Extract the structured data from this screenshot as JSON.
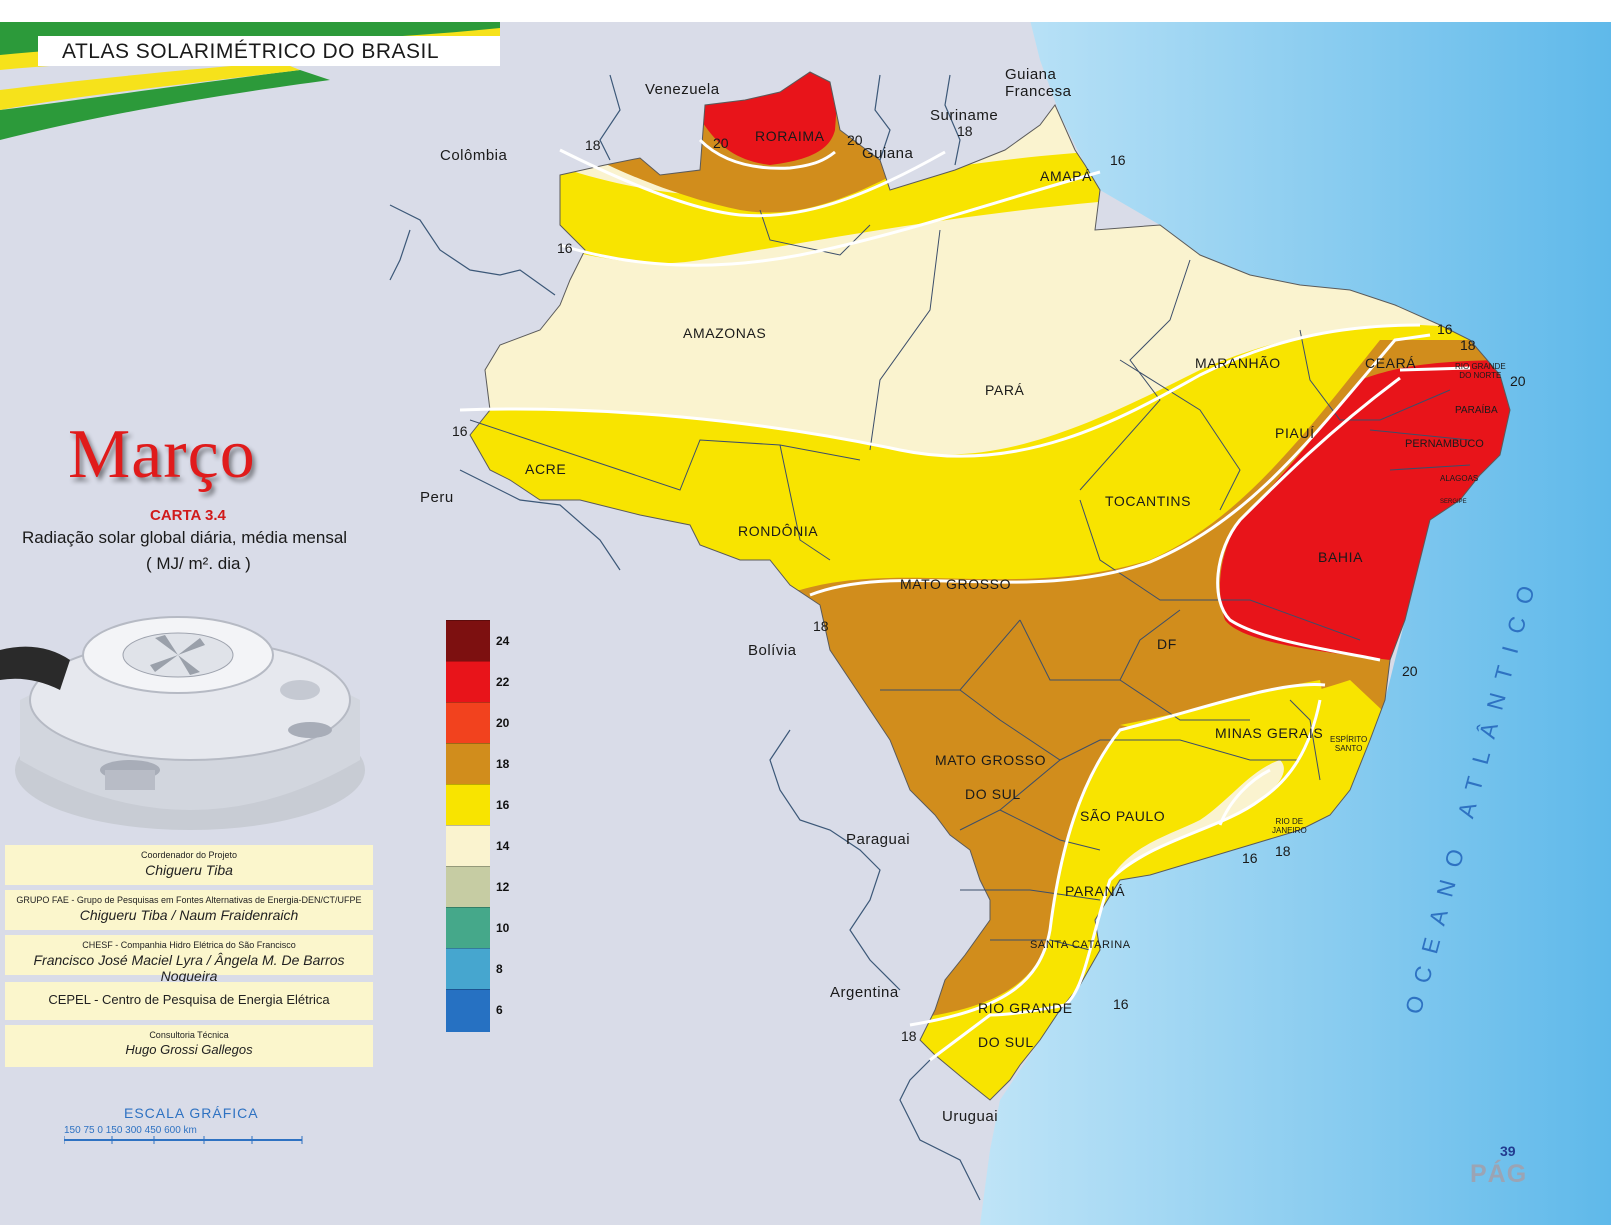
{
  "header": {
    "atlas_title": "ATLAS SOLARIMÉTRICO DO BRASIL"
  },
  "title": {
    "month": "Março",
    "carta": "CARTA 3.4",
    "subtitle": "Radiação solar global diária, média mensal",
    "units": "( MJ/ m². dia )"
  },
  "legend": {
    "items": [
      {
        "value": "24",
        "color": "#7d1010"
      },
      {
        "value": "22",
        "color": "#e8141a"
      },
      {
        "value": "20",
        "color": "#f2421e"
      },
      {
        "value": "18",
        "color": "#d18d1c"
      },
      {
        "value": "16",
        "color": "#f8e400"
      },
      {
        "value": "14",
        "color": "#faf3cf"
      },
      {
        "value": "12",
        "color": "#c6cca3"
      },
      {
        "value": "10",
        "color": "#45a88a"
      },
      {
        "value": "8",
        "color": "#46a6cf"
      },
      {
        "value": "6",
        "color": "#2671c2"
      }
    ]
  },
  "credits": [
    {
      "small": "Coordenador do Projeto",
      "name": "Chigueru  Tiba"
    },
    {
      "small": "GRUPO  FAE - Grupo de Pesquisas em Fontes Alternativas de Energia-DEN/CT/UFPE",
      "name": "Chigueru Tiba /   Naum  Fraidenraich"
    },
    {
      "small": "CHESF  -  Companhia Hidro Elétrica do São Francisco",
      "name": "Francisco José Maciel Lyra / Ângela M. De Barros Nogueira"
    },
    {
      "small": "",
      "name": "CEPEL - Centro de Pesquisa de Energia Elétrica"
    },
    {
      "small": "Consultoria Técnica",
      "name": "Hugo  Grossi Gallegos"
    }
  ],
  "scale": {
    "title": "ESCALA  GRÁFICA",
    "ticks": "150  75   0      150       300      450       600  km"
  },
  "countries": {
    "venezuela": "Venezuela",
    "guiana_francesa": "Guiana\nFrancesa",
    "suriname": "Suriname",
    "guiana": "Guiana",
    "colombia": "Colômbia",
    "peru": "Peru",
    "bolivia": "Bolívia",
    "paraguai": "Paraguai",
    "argentina": "Argentina",
    "uruguai": "Uruguai"
  },
  "states": {
    "roraima": "RORAIMA",
    "amapa": "AMAPÁ",
    "amazonas": "AMAZONAS",
    "para": "PARÁ",
    "maranhao": "MARANHÃO",
    "ceara": "CEARÁ",
    "rio_grande_do_norte": "RIO GRANDE\nDO NORTE",
    "paraiba": "PARAÍBA",
    "pernambuco": "PERNAMBUCO",
    "alagoas": "ALAGOAS",
    "sergipe": "SERGIPE",
    "piaui": "PIAUÍ",
    "acre": "ACRE",
    "rondonia": "RONDÔNIA",
    "tocantins": "TOCANTINS",
    "bahia": "BAHIA",
    "mato_grosso": "MATO  GROSSO",
    "df": "DF",
    "minas_gerais": "MINAS  GERAIS",
    "espirito_santo": "ESPÍRITO\nSANTO",
    "mato_grosso_do_sul_1": "MATO  GROSSO",
    "mato_grosso_do_sul_2": "DO SUL",
    "sao_paulo": "SÃO  PAULO",
    "rio_de_janeiro": "RIO DE\nJANEIRO",
    "parana": "PARANÁ",
    "santa_catarina": "SANTA CATARINA",
    "rio_grande_do_sul_1": "RIO GRANDE",
    "rio_grande_do_sul_2": "DO  SUL"
  },
  "isolines": {
    "n18_left": "18",
    "n20_roraima_l": "20",
    "n20_roraima_r": "20",
    "n18_suriname": "18",
    "n16_amapa": "16",
    "n16_amazonas": "16",
    "n16_acre": "16",
    "n16_ne": "16",
    "n18_ne": "18",
    "n20_ne": "20",
    "n18_bolivia": "18",
    "n20_bahia": "20",
    "n16_rj": "16",
    "n18_rj": "18",
    "n16_sul": "16",
    "n18_sul": "18"
  },
  "ocean": "OCEANO  ATLÂNTICO",
  "page": {
    "number": "39",
    "pag": "PÁG"
  }
}
